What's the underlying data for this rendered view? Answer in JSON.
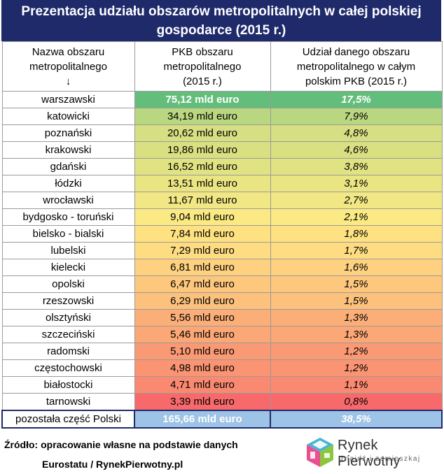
{
  "title": {
    "line1": "Prezentacja udziału obszarów metropolitalnych w całej polskiej",
    "line2": "gospodarce (2015 r.)"
  },
  "header": {
    "col1_line1": "Nazwa obszaru",
    "col1_line2": "metropolitalnego",
    "col1_arrow": "↓",
    "col2_line1": "PKB obszaru",
    "col2_line2": "metropolitalnego",
    "col2_line3": "(2015 r.)",
    "col3_line1": "Udział danego obszaru",
    "col3_line2": "metropolitalnego w całym",
    "col3_line3": "polskim PKB (2015 r.)"
  },
  "rows": [
    {
      "name": "warszawski",
      "pkb": "75,12 mld euro",
      "share": "17,5%",
      "color": "#63be7b"
    },
    {
      "name": "katowicki",
      "pkb": "34,19 mld euro",
      "share": "7,9%",
      "color": "#b9d780"
    },
    {
      "name": "poznański",
      "pkb": "20,62 mld euro",
      "share": "4,8%",
      "color": "#d6df82"
    },
    {
      "name": "krakowski",
      "pkb": "19,86 mld euro",
      "share": "4,6%",
      "color": "#d9e082"
    },
    {
      "name": "gdański",
      "pkb": "16,52 mld euro",
      "share": "3,8%",
      "color": "#e1e383"
    },
    {
      "name": "łódzki",
      "pkb": "13,51 mld euro",
      "share": "3,1%",
      "color": "#eae583"
    },
    {
      "name": "wrocławski",
      "pkb": "11,67 mld euro",
      "share": "2,7%",
      "color": "#f1e784"
    },
    {
      "name": "bydgosko - toruński",
      "pkb": "9,04 mld euro",
      "share": "2,1%",
      "color": "#fbe983"
    },
    {
      "name": "bielsko - bialski",
      "pkb": "7,84 mld euro",
      "share": "1,8%",
      "color": "#fee282"
    },
    {
      "name": "lubelski",
      "pkb": "7,29 mld euro",
      "share": "1,7%",
      "color": "#fedc81"
    },
    {
      "name": "kielecki",
      "pkb": "6,81 mld euro",
      "share": "1,6%",
      "color": "#fdd17f"
    },
    {
      "name": "opolski",
      "pkb": "6,47 mld euro",
      "share": "1,5%",
      "color": "#fdc87d"
    },
    {
      "name": "rzeszowski",
      "pkb": "6,29 mld euro",
      "share": "1,5%",
      "color": "#fcc17c"
    },
    {
      "name": "olsztyński",
      "pkb": "5,56 mld euro",
      "share": "1,3%",
      "color": "#fbae78"
    },
    {
      "name": "szczeciński",
      "pkb": "5,46 mld euro",
      "share": "1,3%",
      "color": "#fba776"
    },
    {
      "name": "radomski",
      "pkb": "5,10 mld euro",
      "share": "1,2%",
      "color": "#fa9a74"
    },
    {
      "name": "częstochowski",
      "pkb": "4,98 mld euro",
      "share": "1,2%",
      "color": "#fa9473"
    },
    {
      "name": "białostocki",
      "pkb": "4,71 mld euro",
      "share": "1,1%",
      "color": "#f98a71"
    },
    {
      "name": "tarnowski",
      "pkb": "3,39 mld euro",
      "share": "0,8%",
      "color": "#f8696b"
    }
  ],
  "rest": {
    "name": "pozostała część Polski",
    "pkb": "165,66 mld euro",
    "share": "38,5%",
    "color": "#9dc3e6"
  },
  "source": {
    "line1": "Źródło: opracowanie własne na podstawie danych",
    "line2": "Eurostatu / RynekPierwotny.pl"
  },
  "logo": {
    "name": "Rynek Pierwotny",
    "tagline": "znajdź i zamieszkaj",
    "icon": "house-cube-logo"
  }
}
